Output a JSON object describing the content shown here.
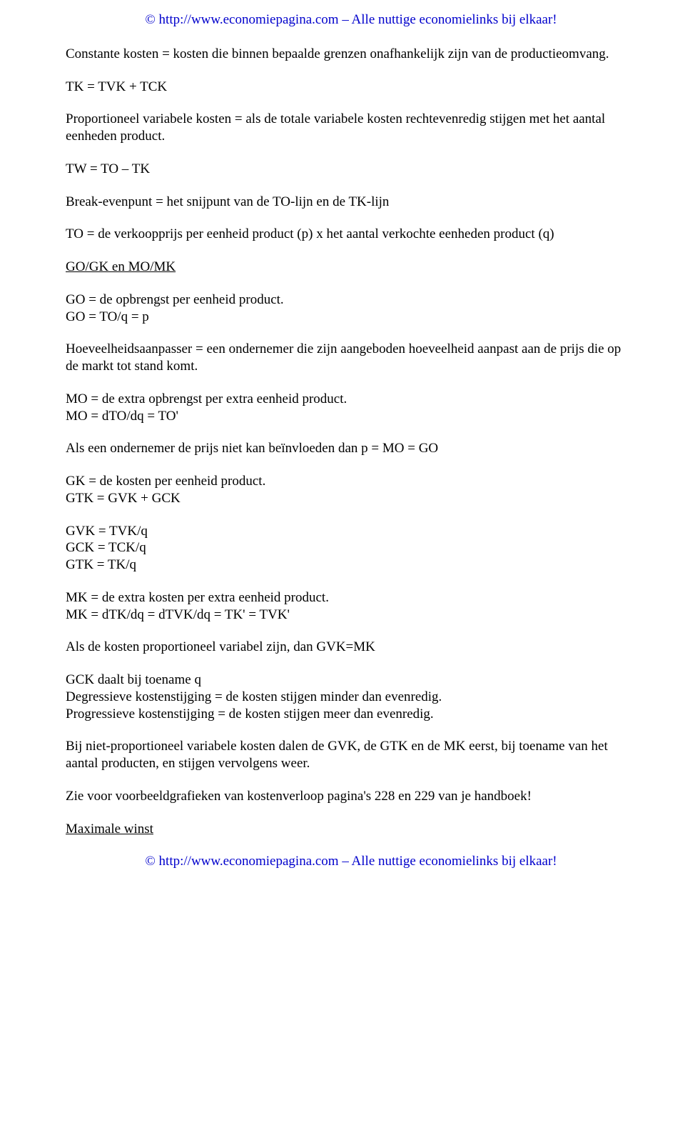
{
  "header_link": "© http://www.economiepagina.com – Alle nuttige economielinks bij elkaar!",
  "footer_link": "© http://www.economiepagina.com – Alle nuttige economielinks bij elkaar!",
  "p1": "Constante kosten = kosten die binnen bepaalde grenzen onafhankelijk zijn van de productieomvang.",
  "p2": "TK = TVK + TCK",
  "p3": "Proportioneel variabele kosten = als de totale variabele kosten rechtevenredig stijgen met het aantal eenheden product.",
  "p4": "TW = TO – TK",
  "p5": "Break-evenpunt = het snijpunt van de TO-lijn en de TK-lijn",
  "p6": "TO = de verkoopprijs per eenheid product (p) x het aantal verkochte eenheden product (q)",
  "p7": "GO/GK en MO/MK",
  "p8a": "GO = de opbrengst per eenheid product.",
  "p8b": "GO = TO/q = p",
  "p9": "Hoeveelheidsaanpasser = een ondernemer die zijn aangeboden hoeveelheid aanpast aan de prijs die op de markt tot stand komt.",
  "p10a": "MO = de extra opbrengst per extra eenheid product.",
  "p10b": "MO = dTO/dq = TO'",
  "p11": "Als een ondernemer de prijs niet kan beïnvloeden dan p = MO = GO",
  "p12a": "GK = de kosten per eenheid product.",
  "p12b": "GTK = GVK + GCK",
  "p13a": "GVK = TVK/q",
  "p13b": "GCK = TCK/q",
  "p13c": "GTK = TK/q",
  "p14a": "MK = de extra kosten per extra eenheid product.",
  "p14b": "MK = dTK/dq = dTVK/dq = TK' = TVK'",
  "p15": "Als de kosten proportioneel variabel zijn, dan GVK=MK",
  "p16a": "GCK daalt bij toename q",
  "p16b": "Degressieve kostenstijging = de kosten stijgen minder dan evenredig.",
  "p16c": "Progressieve kostenstijging = de kosten stijgen meer dan evenredig.",
  "p17": "Bij niet-proportioneel variabele kosten dalen de GVK, de GTK en de MK eerst, bij toename van het aantal producten, en stijgen vervolgens weer.",
  "p18": "Zie voor voorbeeldgrafieken van kostenverloop pagina's 228 en 229 van je handboek!",
  "p19": "Maximale winst"
}
